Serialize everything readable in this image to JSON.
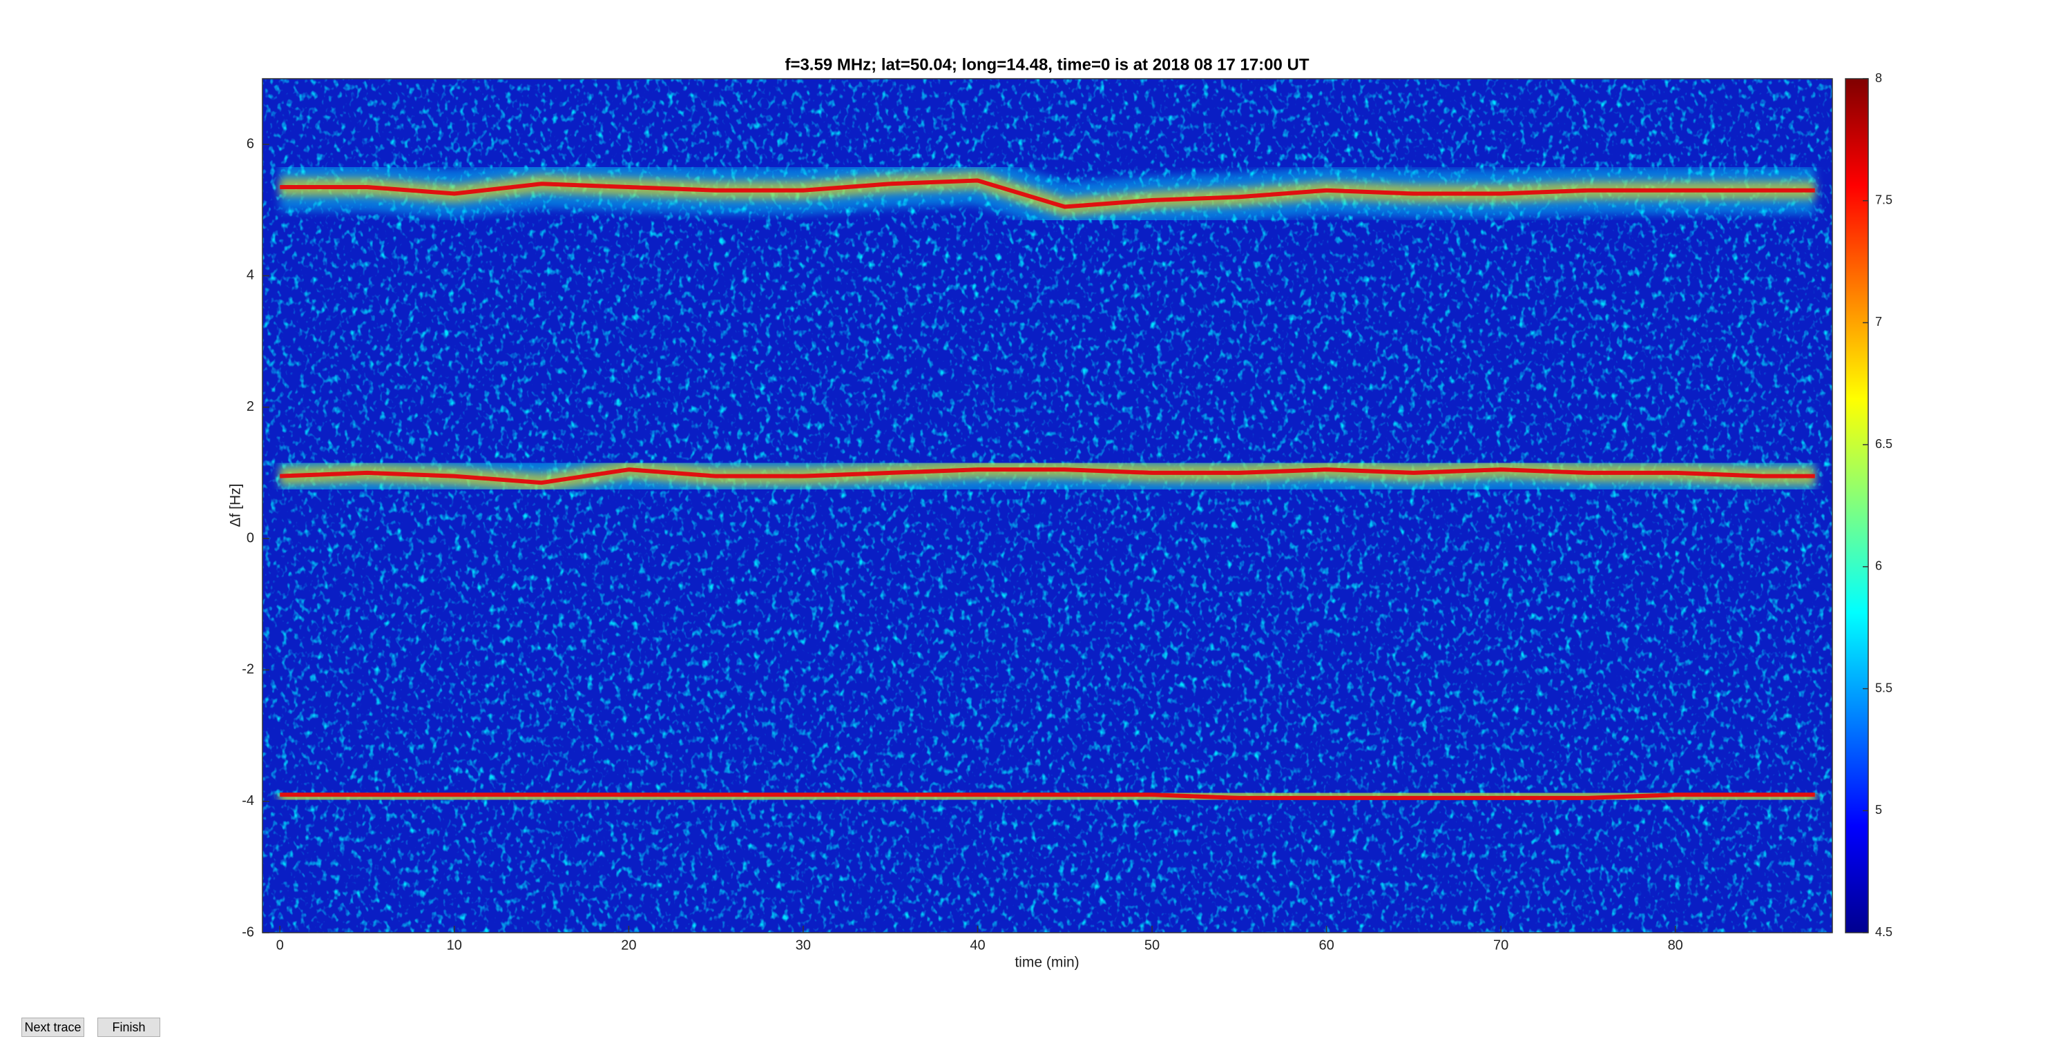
{
  "chart_data": {
    "type": "spectrogram",
    "title": "f=3.59 MHz;  lat=50.04; long=14.48, time=0 is at 2018 08 17 17:00 UT",
    "xlabel": "time (min)",
    "ylabel": "Δf [Hz]",
    "xlim": [
      -1,
      89
    ],
    "ylim": [
      -6,
      7
    ],
    "xticks": [
      0,
      10,
      20,
      30,
      40,
      50,
      60,
      70,
      80
    ],
    "yticks": [
      -6,
      -4,
      -2,
      0,
      2,
      4,
      6
    ],
    "colormap": "jet",
    "clim": [
      4.5,
      8
    ],
    "cticks": [
      4.5,
      5,
      5.5,
      6,
      6.5,
      7,
      7.5,
      8
    ],
    "x": [
      0,
      5,
      10,
      15,
      20,
      25,
      30,
      35,
      40,
      45,
      50,
      55,
      60,
      65,
      70,
      75,
      80,
      85,
      88
    ],
    "series": [
      {
        "color": "#e01010",
        "values": [
          5.35,
          5.35,
          5.25,
          5.4,
          5.35,
          5.3,
          5.3,
          5.4,
          5.45,
          5.05,
          5.15,
          5.2,
          5.3,
          5.25,
          5.25,
          5.3,
          5.3,
          5.3,
          5.3
        ]
      },
      {
        "color": "#e01010",
        "values": [
          0.95,
          1.0,
          0.95,
          0.85,
          1.05,
          0.95,
          0.95,
          1.0,
          1.05,
          1.05,
          1.0,
          1.0,
          1.05,
          1.0,
          1.05,
          1.0,
          1.0,
          0.95,
          0.95
        ]
      },
      {
        "color": "#e01010",
        "values": [
          -3.9,
          -3.9,
          -3.9,
          -3.9,
          -3.9,
          -3.9,
          -3.9,
          -3.9,
          -3.9,
          -3.9,
          -3.9,
          -3.95,
          -3.95,
          -3.95,
          -3.95,
          -3.95,
          -3.9,
          -3.9,
          -3.9
        ]
      }
    ]
  },
  "buttons": [
    "Next trace",
    "Finish"
  ]
}
